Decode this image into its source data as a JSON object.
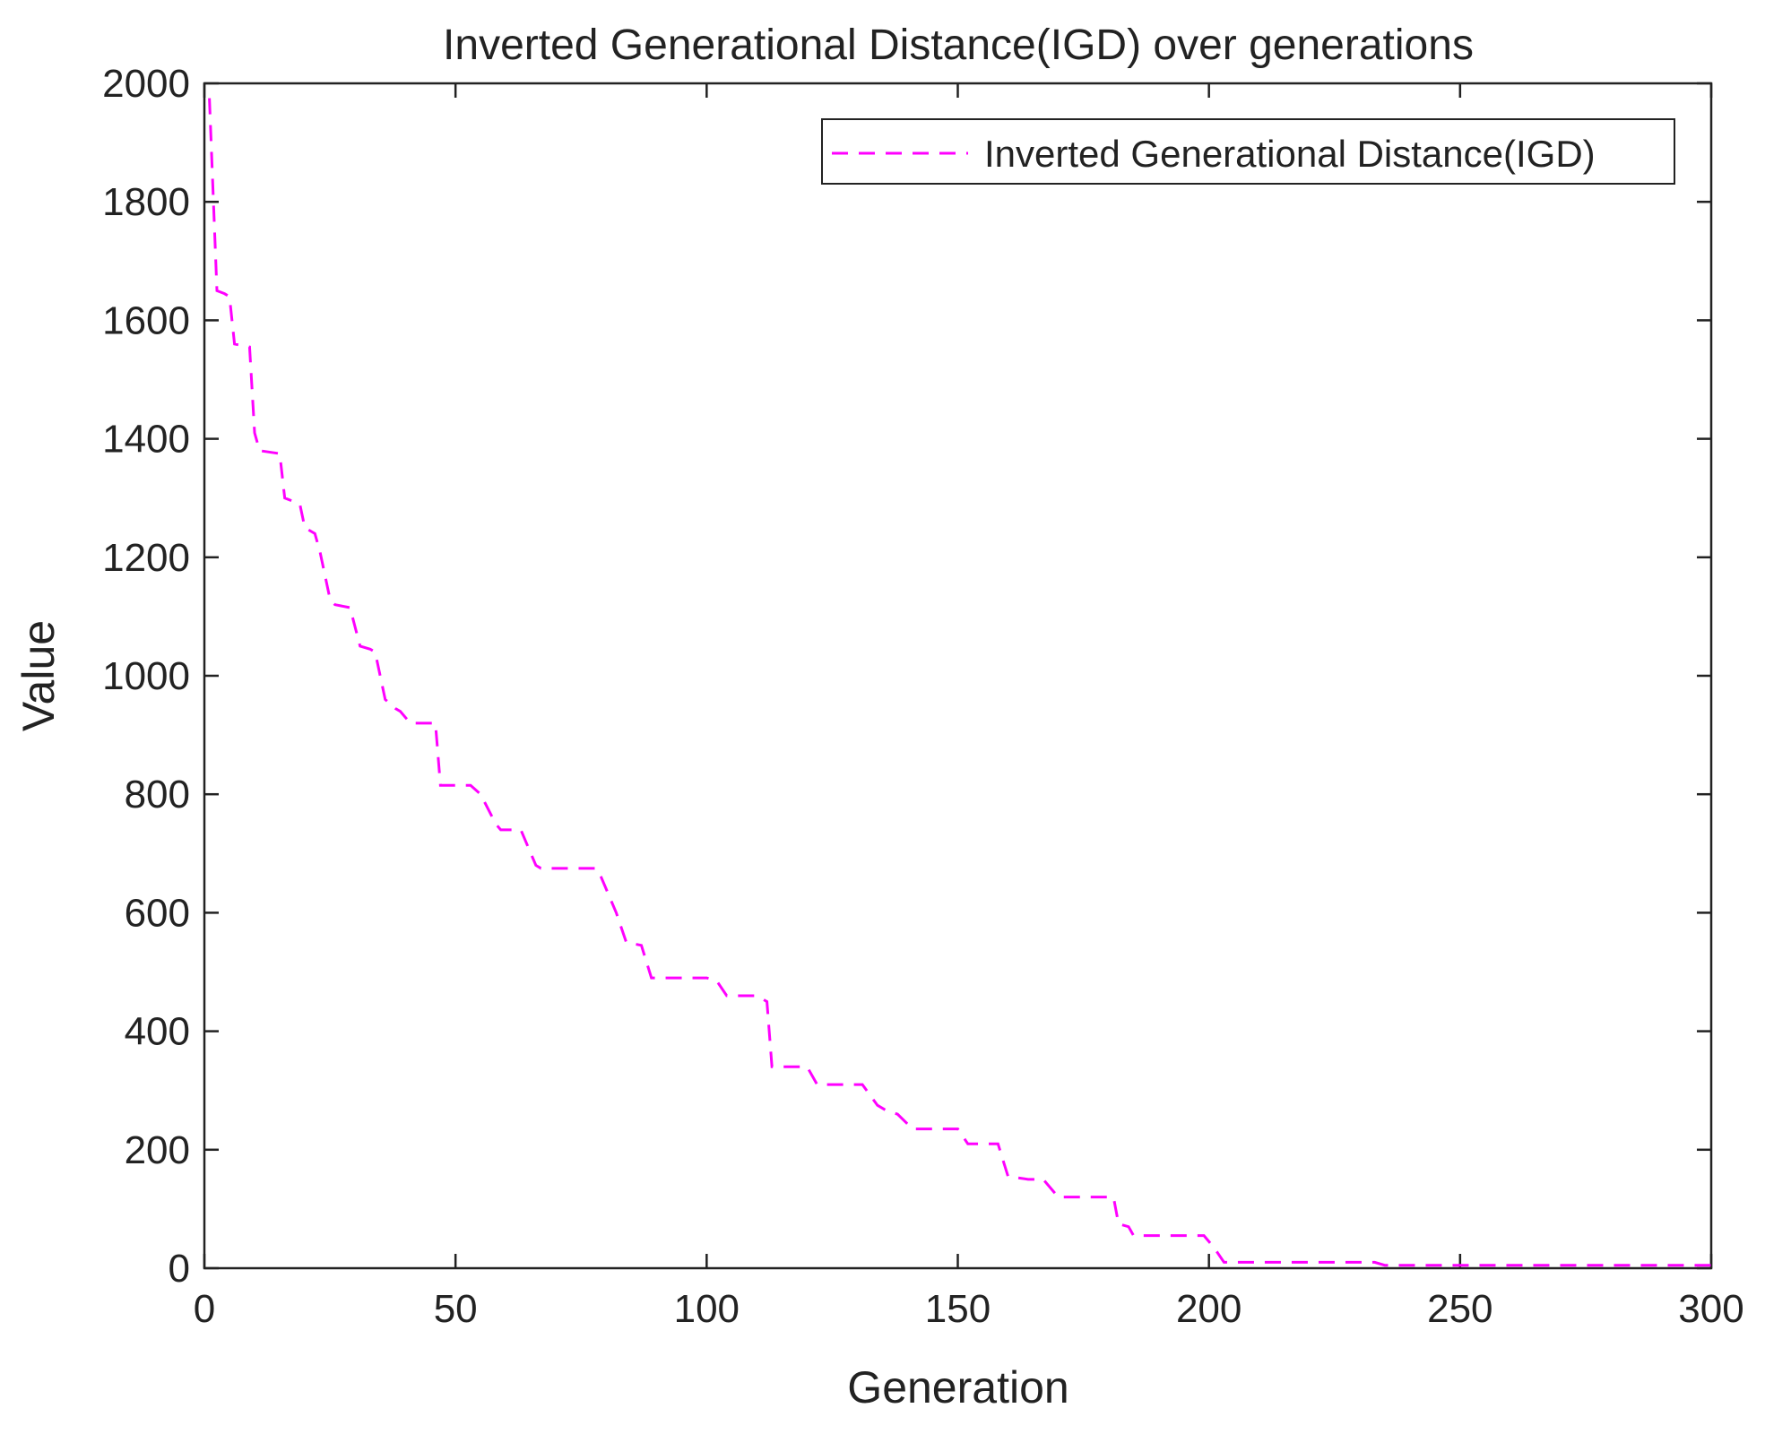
{
  "chart_data": {
    "type": "line",
    "title": "Inverted Generational Distance(IGD) over generations",
    "xlabel": "Generation",
    "ylabel": "Value",
    "xlim": [
      0,
      300
    ],
    "ylim": [
      0,
      2000
    ],
    "xticks": [
      0,
      50,
      100,
      150,
      200,
      250,
      300
    ],
    "yticks": [
      0,
      200,
      400,
      600,
      800,
      1000,
      1200,
      1400,
      1600,
      1800,
      2000
    ],
    "grid": false,
    "legend": {
      "position": "top-right",
      "entries": [
        "Inverted Generational Distance(IGD)"
      ]
    },
    "series": [
      {
        "name": "Inverted Generational Distance(IGD)",
        "color": "#ff00ff",
        "style": "dashed",
        "x": [
          1,
          2.5,
          4,
          5,
          6,
          9,
          10,
          11,
          15,
          16,
          19,
          20,
          22,
          23,
          25,
          26,
          29,
          31,
          33,
          34,
          36,
          38,
          39,
          41,
          46,
          47,
          53,
          55,
          58,
          59,
          63,
          66,
          67,
          78,
          79,
          82,
          84,
          87,
          89,
          100,
          102,
          104,
          110,
          112,
          113,
          120,
          122,
          131,
          134,
          136,
          138,
          141,
          150,
          152,
          158,
          160,
          164,
          167,
          170,
          181,
          182,
          184,
          185,
          199,
          201,
          203,
          233,
          235,
          300
        ],
        "y": [
          1975,
          1650,
          1645,
          1640,
          1560,
          1555,
          1410,
          1380,
          1375,
          1300,
          1290,
          1250,
          1240,
          1210,
          1130,
          1120,
          1115,
          1050,
          1045,
          1040,
          960,
          945,
          940,
          920,
          920,
          815,
          815,
          800,
          750,
          740,
          740,
          680,
          675,
          675,
          660,
          600,
          550,
          545,
          490,
          490,
          485,
          460,
          460,
          450,
          340,
          340,
          310,
          310,
          275,
          265,
          260,
          235,
          235,
          210,
          210,
          155,
          150,
          150,
          120,
          120,
          75,
          70,
          55,
          55,
          35,
          10,
          10,
          5,
          5
        ]
      }
    ]
  }
}
